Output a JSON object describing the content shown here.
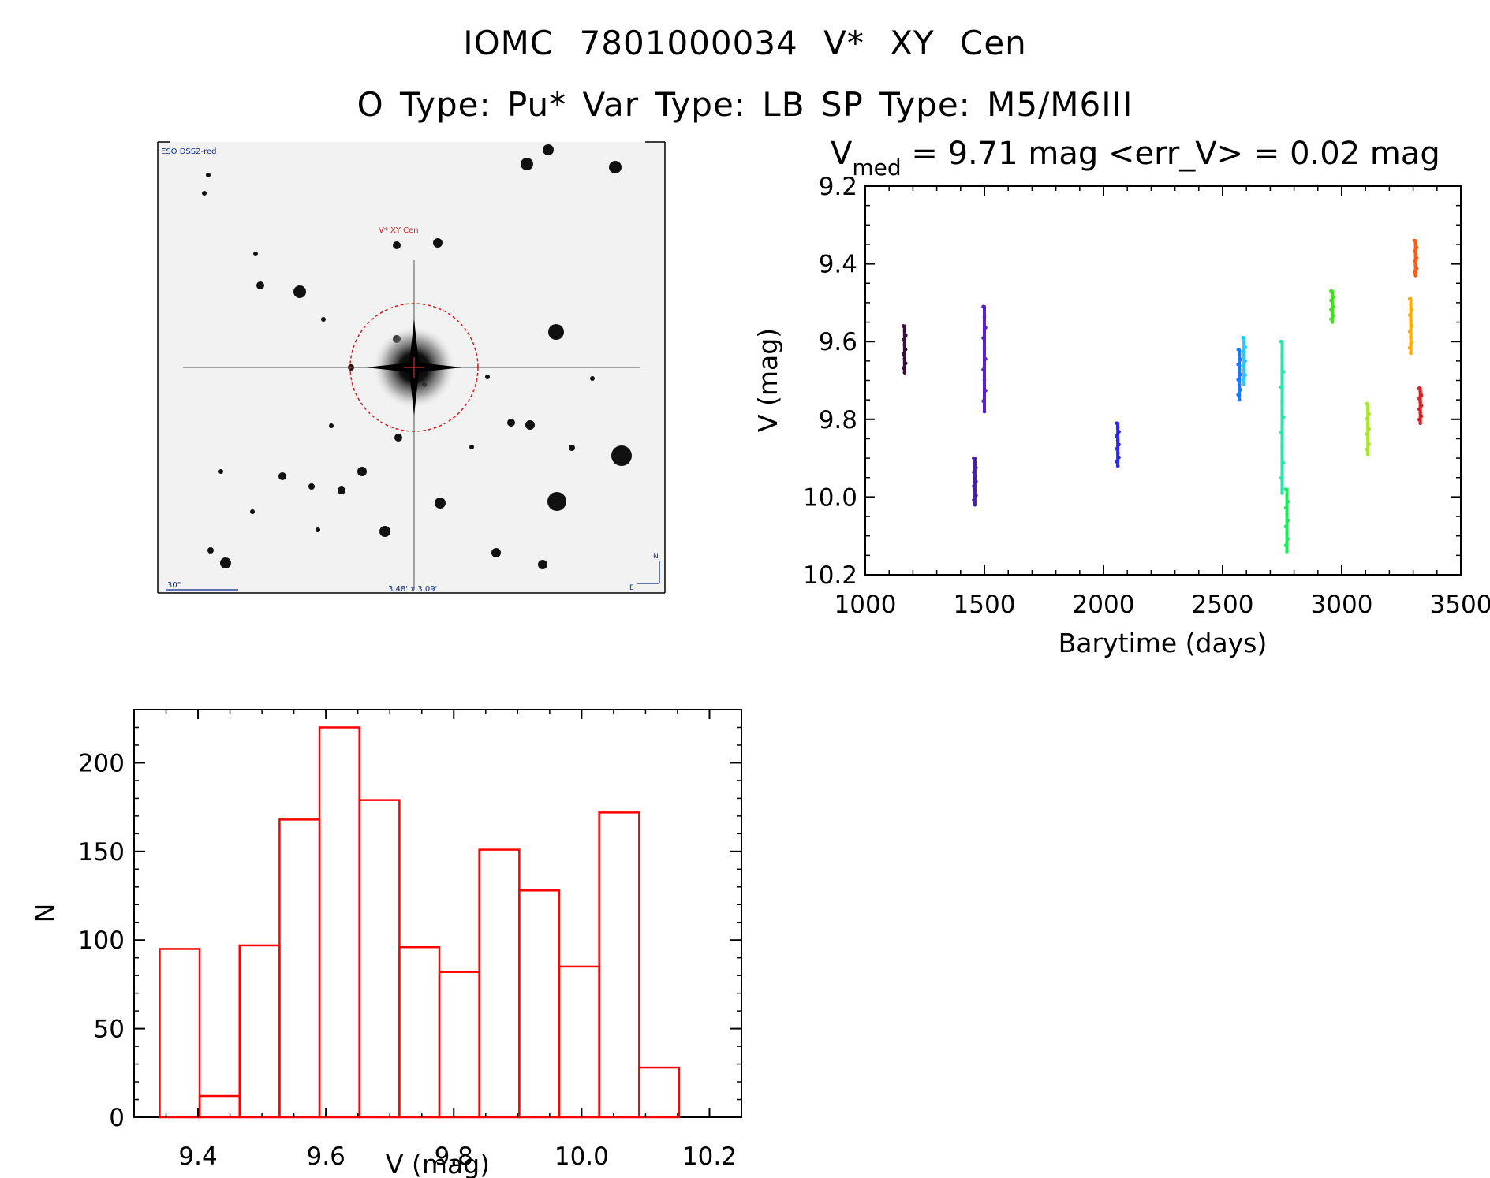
{
  "header": {
    "object_line": "IOMC 7801000034    V* XY Cen",
    "type_line": "O Type: Pu*   Var Type: LB   SP Type: M5/M6III"
  },
  "finder_image": {
    "survey_label": "ESO DSS2-red",
    "target_label": "V* XY Cen",
    "scale_label": "30\"",
    "size_label": "3.48' x 3.09'",
    "compass_n": "N",
    "compass_e": "E",
    "circle_color": "#cc2222"
  },
  "chart_data": [
    {
      "type": "scatter",
      "title_prefix": "V",
      "title_sub": "med",
      "title_rest": " = 9.71 mag <err_V> = 0.02 mag",
      "xlabel": "Barytime (days)",
      "ylabel": "V (mag)",
      "xlim": [
        1000,
        3500
      ],
      "ylim": [
        9.2,
        10.2
      ],
      "y_inverted": true,
      "xticks": [
        "1000",
        "1500",
        "2000",
        "2500",
        "3000",
        "3500"
      ],
      "yticks": [
        "9.2",
        "9.4",
        "9.6",
        "9.8",
        "10.0",
        "10.2"
      ],
      "series": [
        {
          "x": 1165,
          "ymin": 9.56,
          "ymax": 9.68,
          "color": "#3a0b3f"
        },
        {
          "x": 1460,
          "ymin": 9.9,
          "ymax": 10.02,
          "color": "#4a1ea0"
        },
        {
          "x": 1500,
          "ymin": 9.51,
          "ymax": 9.78,
          "color": "#5a22c8"
        },
        {
          "x": 2060,
          "ymin": 9.81,
          "ymax": 9.92,
          "color": "#2a2ae8"
        },
        {
          "x": 2570,
          "ymin": 9.62,
          "ymax": 9.75,
          "color": "#1e78ff"
        },
        {
          "x": 2590,
          "ymin": 9.59,
          "ymax": 9.71,
          "color": "#22c8ff"
        },
        {
          "x": 2750,
          "ymin": 9.6,
          "ymax": 9.99,
          "color": "#22e8a8"
        },
        {
          "x": 2770,
          "ymin": 9.98,
          "ymax": 10.14,
          "color": "#22e860"
        },
        {
          "x": 2960,
          "ymin": 9.47,
          "ymax": 9.55,
          "color": "#44dd22"
        },
        {
          "x": 3110,
          "ymin": 9.76,
          "ymax": 9.89,
          "color": "#a8e822"
        },
        {
          "x": 3290,
          "ymin": 9.49,
          "ymax": 9.63,
          "color": "#ffaa00"
        },
        {
          "x": 3310,
          "ymin": 9.34,
          "ymax": 9.43,
          "color": "#ff5a10"
        },
        {
          "x": 3330,
          "ymin": 9.72,
          "ymax": 9.81,
          "color": "#e02020"
        }
      ]
    },
    {
      "type": "bar",
      "xlabel": "V (mag)",
      "ylabel": "N",
      "xlim": [
        9.3,
        10.25
      ],
      "ylim": [
        0,
        230
      ],
      "xticks": [
        "9.4",
        "9.6",
        "9.8",
        "10.0",
        "10.2"
      ],
      "yticks": [
        "0",
        "50",
        "100",
        "150",
        "200"
      ],
      "bin_start": 9.34,
      "bin_width": 0.0625,
      "values": [
        95,
        12,
        97,
        168,
        220,
        179,
        96,
        82,
        151,
        128,
        85,
        172,
        28
      ],
      "color": "#ff0000"
    }
  ]
}
